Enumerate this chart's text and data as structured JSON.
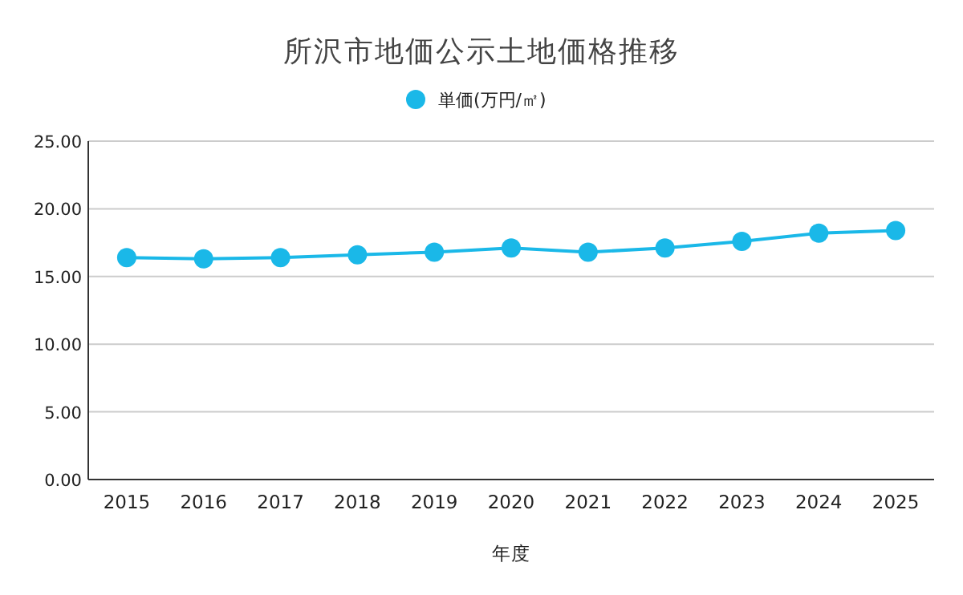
{
  "chart_data": {
    "type": "line",
    "title": "所沢市地価公示土地価格推移",
    "xlabel": "年度",
    "categories": [
      "2015",
      "2016",
      "2017",
      "2018",
      "2019",
      "2020",
      "2021",
      "2022",
      "2023",
      "2024",
      "2025"
    ],
    "series": [
      {
        "name": "単価(万円/㎡)",
        "color": "#1ab8e8",
        "values": [
          16.4,
          16.3,
          16.4,
          16.6,
          16.8,
          17.1,
          16.8,
          17.1,
          17.6,
          18.2,
          18.4
        ]
      }
    ],
    "ylim": [
      0,
      25
    ],
    "yticks": [
      {
        "value": 0,
        "label": "0.00"
      },
      {
        "value": 5,
        "label": "5.00"
      },
      {
        "value": 10,
        "label": "10.00"
      },
      {
        "value": 15,
        "label": "15.00"
      },
      {
        "value": 20,
        "label": "20.00"
      },
      {
        "value": 25,
        "label": "25.00"
      }
    ],
    "grid": "y",
    "legend": "top",
    "marker": "circle"
  }
}
